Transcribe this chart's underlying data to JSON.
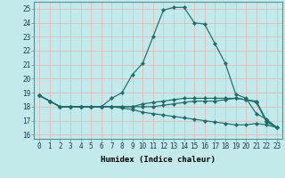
{
  "xlabel": "Humidex (Indice chaleur)",
  "background_color": "#c2eaea",
  "grid_color": "#e8b8b8",
  "line_color": "#1a6e6a",
  "x": [
    0,
    1,
    2,
    3,
    4,
    5,
    6,
    7,
    8,
    9,
    10,
    11,
    12,
    13,
    14,
    15,
    16,
    17,
    18,
    19,
    20,
    21,
    22,
    23
  ],
  "series1": [
    18.8,
    18.4,
    18.0,
    18.0,
    18.0,
    18.0,
    18.0,
    18.6,
    19.0,
    20.3,
    21.1,
    23.0,
    24.9,
    25.1,
    25.1,
    24.0,
    23.9,
    22.5,
    21.1,
    18.9,
    18.6,
    17.5,
    17.1,
    16.5
  ],
  "series2": [
    18.8,
    18.4,
    18.0,
    18.0,
    18.0,
    18.0,
    18.0,
    18.0,
    18.0,
    18.0,
    18.2,
    18.3,
    18.4,
    18.5,
    18.6,
    18.6,
    18.6,
    18.6,
    18.6,
    18.6,
    18.5,
    18.4,
    17.0,
    16.5
  ],
  "series3": [
    18.8,
    18.4,
    18.0,
    18.0,
    18.0,
    18.0,
    18.0,
    18.0,
    18.0,
    18.0,
    18.0,
    18.0,
    18.1,
    18.2,
    18.3,
    18.4,
    18.4,
    18.4,
    18.5,
    18.6,
    18.5,
    18.3,
    16.9,
    16.5
  ],
  "series4": [
    18.8,
    18.4,
    18.0,
    18.0,
    18.0,
    18.0,
    18.0,
    18.0,
    17.9,
    17.8,
    17.6,
    17.5,
    17.4,
    17.3,
    17.2,
    17.1,
    17.0,
    16.9,
    16.8,
    16.7,
    16.7,
    16.8,
    16.7,
    16.5
  ],
  "ylim": [
    15.7,
    25.5
  ],
  "yticks": [
    16,
    17,
    18,
    19,
    20,
    21,
    22,
    23,
    24,
    25
  ],
  "xlim": [
    -0.5,
    23.5
  ],
  "xticks": [
    0,
    1,
    2,
    3,
    4,
    5,
    6,
    7,
    8,
    9,
    10,
    11,
    12,
    13,
    14,
    15,
    16,
    17,
    18,
    19,
    20,
    21,
    22,
    23
  ],
  "tick_fontsize": 5.5,
  "xlabel_fontsize": 6.5
}
